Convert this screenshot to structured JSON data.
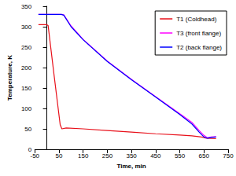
{
  "chart_data": {
    "type": "line",
    "xlabel": "Time, min",
    "ylabel": "Temperature, K",
    "xlim": [
      -50,
      750
    ],
    "xticks": [
      -50,
      50,
      150,
      250,
      350,
      450,
      550,
      650,
      750
    ],
    "ylim": [
      0,
      350
    ],
    "yticks": [
      0,
      50,
      100,
      150,
      200,
      250,
      300,
      350
    ],
    "grid": false,
    "legend": "upper right",
    "series": [
      {
        "name": "T1 (Coldhead)",
        "color": "#e8101a",
        "x": [
          -35,
          0,
          5,
          30,
          55,
          62,
          80,
          150,
          250,
          350,
          450,
          550,
          600,
          640,
          660,
          700
        ],
        "values": [
          305,
          305,
          303,
          180,
          60,
          50,
          52,
          50,
          46,
          42,
          38,
          35,
          33,
          30,
          27,
          26
        ]
      },
      {
        "name": "T3 (front flange)",
        "color": "#ff00ff",
        "x": [
          -35,
          0,
          60,
          70,
          100,
          150,
          250,
          350,
          450,
          550,
          600,
          630,
          650,
          665,
          680,
          700
        ],
        "values": [
          330,
          330,
          330,
          329,
          302,
          269,
          216,
          171,
          129,
          87,
          66,
          46,
          34,
          28,
          30,
          31
        ]
      },
      {
        "name": "T2 (back flange)",
        "color": "#0000ff",
        "x": [
          -35,
          0,
          60,
          70,
          100,
          150,
          250,
          350,
          450,
          550,
          600,
          630,
          650,
          665,
          680,
          700
        ],
        "values": [
          330,
          330,
          330,
          328,
          300,
          268,
          215,
          170,
          128,
          85,
          62,
          42,
          30,
          27,
          29,
          30
        ]
      }
    ]
  }
}
